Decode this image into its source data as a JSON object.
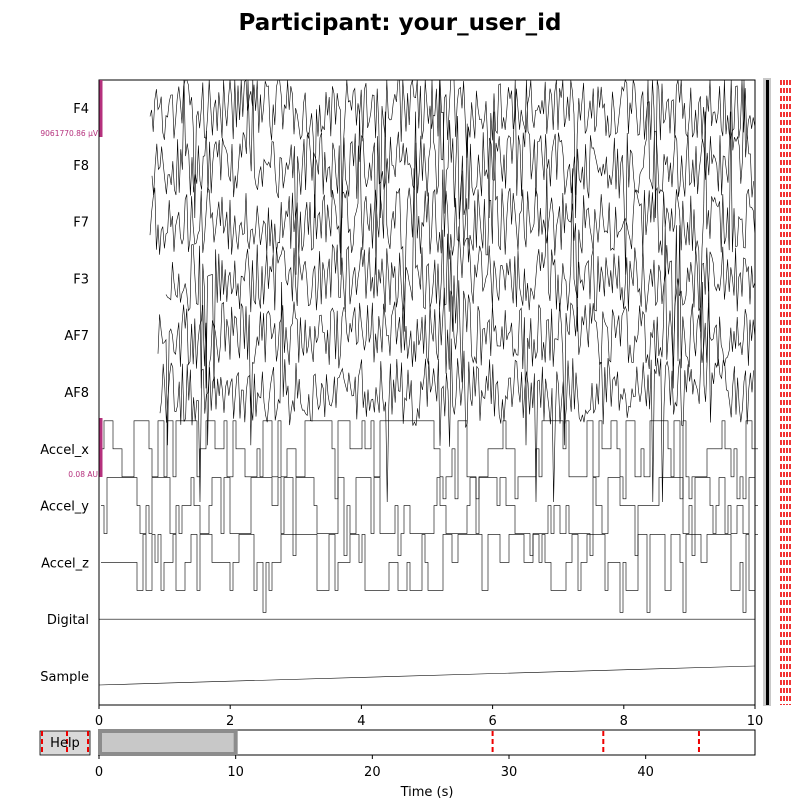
{
  "title": "Participant: your_user_id",
  "chart_data": {
    "type": "line",
    "title": "Participant: your_user_id",
    "xlabel": "",
    "xlim": [
      0,
      10
    ],
    "x_ticks": [
      "0",
      "2",
      "4",
      "6",
      "8",
      "10"
    ],
    "channels": [
      "F4",
      "F8",
      "F7",
      "F3",
      "AF7",
      "AF8",
      "Accel_x",
      "Accel_y",
      "Accel_z",
      "Digital",
      "Sample"
    ],
    "eeg_scale_label": "9061770.86 µV",
    "misc_scale_label": "0.08 AU",
    "event_markers_right": 4
  },
  "scrollbar": {
    "xlabel": "Time (s)",
    "x_ticks": [
      "0",
      "10",
      "20",
      "30",
      "40"
    ],
    "xlim": [
      0,
      48
    ],
    "view_window": [
      0,
      10
    ],
    "event_lines": [
      28.8,
      36.9,
      43.9
    ],
    "help_label": "Help"
  }
}
